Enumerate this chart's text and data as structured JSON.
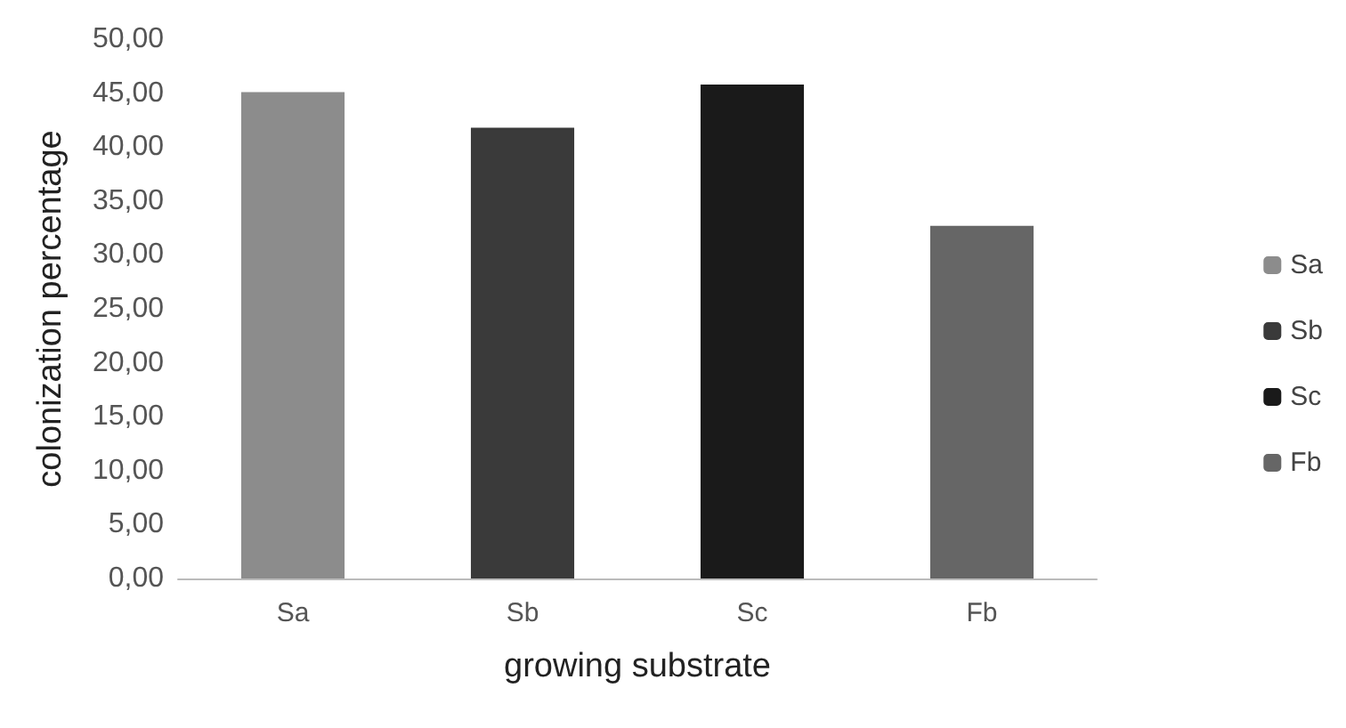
{
  "chart_data": {
    "type": "bar",
    "xlabel": "growing substrate",
    "ylabel": "colonization percentage",
    "categories": [
      "Sa",
      "Sb",
      "Sc",
      "Fb"
    ],
    "series": [
      {
        "name": "Sa",
        "color": "#8c8c8c",
        "values": [
          45.1,
          null,
          null,
          null
        ]
      },
      {
        "name": "Sb",
        "color": "#3a3a3a",
        "values": [
          null,
          41.8,
          null,
          null
        ]
      },
      {
        "name": "Sc",
        "color": "#1a1a1a",
        "values": [
          null,
          null,
          45.8,
          null
        ]
      },
      {
        "name": "Fb",
        "color": "#666666",
        "values": [
          null,
          null,
          null,
          32.7
        ]
      }
    ],
    "ylim": [
      0,
      50
    ],
    "yticks": [
      {
        "value": 0,
        "label": "0,00"
      },
      {
        "value": 5,
        "label": "5,00"
      },
      {
        "value": 10,
        "label": "10,00"
      },
      {
        "value": 15,
        "label": "15,00"
      },
      {
        "value": 20,
        "label": "20,00"
      },
      {
        "value": 25,
        "label": "25,00"
      },
      {
        "value": 30,
        "label": "30,00"
      },
      {
        "value": 35,
        "label": "35,00"
      },
      {
        "value": 40,
        "label": "40,00"
      },
      {
        "value": 45,
        "label": "45,00"
      },
      {
        "value": 50,
        "label": "50,00"
      }
    ],
    "grid": false,
    "legend": "right"
  }
}
